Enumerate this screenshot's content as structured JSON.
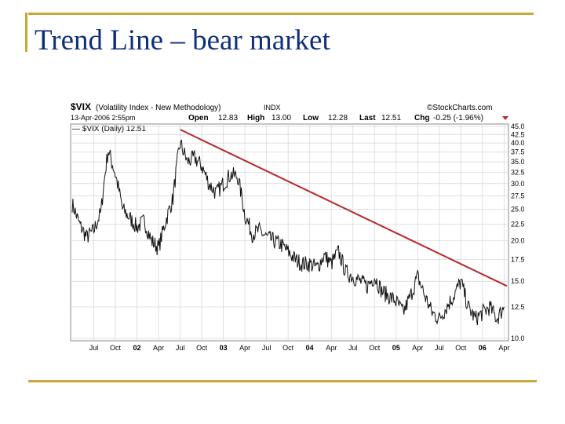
{
  "slide": {
    "title": "Trend Line – bear market"
  },
  "chart_header": {
    "symbol": "$VIX",
    "description": "(Volatility Index - New Methodology)",
    "exchange": "INDX",
    "source": "©StockCharts.com",
    "date": "13-Apr-2006 2:55pm",
    "open_label": "Open",
    "open": "12.83",
    "high_label": "High",
    "high": "13.00",
    "low_label": "Low",
    "low": "12.28",
    "last_label": "Last",
    "last": "12.51",
    "chg_label": "Chg",
    "chg": "-0.25 (-1.96%)",
    "legend": "— $VIX (Daily) 12.51"
  },
  "colors": {
    "price_line": "#111111",
    "trend_line": "#b8282c",
    "frame": "#c8a838",
    "title": "#0f2f7a"
  },
  "chart_data": {
    "type": "line",
    "title": "$VIX (Volatility Index - New Methodology)",
    "xlabel": "",
    "ylabel": "",
    "ylim": [
      10.0,
      45.0
    ],
    "y_scale": "log",
    "y_ticks": [
      "45.0",
      "42.5",
      "40.0",
      "37.5",
      "35.0",
      "32.5",
      "30.0",
      "27.5",
      "25.0",
      "22.5",
      "20.0",
      "17.5",
      "15.0",
      "12.5",
      "10.0"
    ],
    "x_ticks": [
      "Jul",
      "Oct",
      "02",
      "Apr",
      "Jul",
      "Oct",
      "03",
      "Apr",
      "Jul",
      "Oct",
      "04",
      "Apr",
      "Jul",
      "Oct",
      "05",
      "Apr",
      "Jul",
      "Oct",
      "06",
      "Apr"
    ],
    "grid": true,
    "series": [
      {
        "name": "$VIX (Daily)",
        "x": [
          "2001-04",
          "2001-05",
          "2001-06",
          "2001-07",
          "2001-08",
          "2001-09",
          "2001-10",
          "2001-11",
          "2001-12",
          "2002-01",
          "2002-02",
          "2002-03",
          "2002-04",
          "2002-05",
          "2002-06",
          "2002-07",
          "2002-08",
          "2002-09",
          "2002-10",
          "2002-11",
          "2002-12",
          "2003-01",
          "2003-02",
          "2003-03",
          "2003-04",
          "2003-05",
          "2003-06",
          "2003-07",
          "2003-08",
          "2003-09",
          "2003-10",
          "2003-11",
          "2003-12",
          "2004-01",
          "2004-02",
          "2004-03",
          "2004-04",
          "2004-05",
          "2004-06",
          "2004-07",
          "2004-08",
          "2004-09",
          "2004-10",
          "2004-11",
          "2004-12",
          "2005-01",
          "2005-02",
          "2005-03",
          "2005-04",
          "2005-05",
          "2005-06",
          "2005-07",
          "2005-08",
          "2005-09",
          "2005-10",
          "2005-11",
          "2005-12",
          "2006-01",
          "2006-02",
          "2006-03",
          "2006-04"
        ],
        "values": [
          26.0,
          22.5,
          20.5,
          21.5,
          24.5,
          38.0,
          32.0,
          25.0,
          23.5,
          22.0,
          23.0,
          20.0,
          19.0,
          23.0,
          27.0,
          40.0,
          35.0,
          36.0,
          34.0,
          30.0,
          28.0,
          30.0,
          32.0,
          31.5,
          24.0,
          21.0,
          21.5,
          20.5,
          20.0,
          19.5,
          18.5,
          17.5,
          17.0,
          17.0,
          16.5,
          18.0,
          17.0,
          18.5,
          16.0,
          15.5,
          15.0,
          14.5,
          15.5,
          14.0,
          13.5,
          13.0,
          12.0,
          13.5,
          15.5,
          13.5,
          12.0,
          11.5,
          12.5,
          13.5,
          15.0,
          12.5,
          11.5,
          12.0,
          12.5,
          11.5,
          12.5
        ]
      },
      {
        "name": "Trend line",
        "x": [
          "2002-07",
          "2006-04"
        ],
        "values": [
          44.0,
          14.5
        ]
      }
    ]
  }
}
